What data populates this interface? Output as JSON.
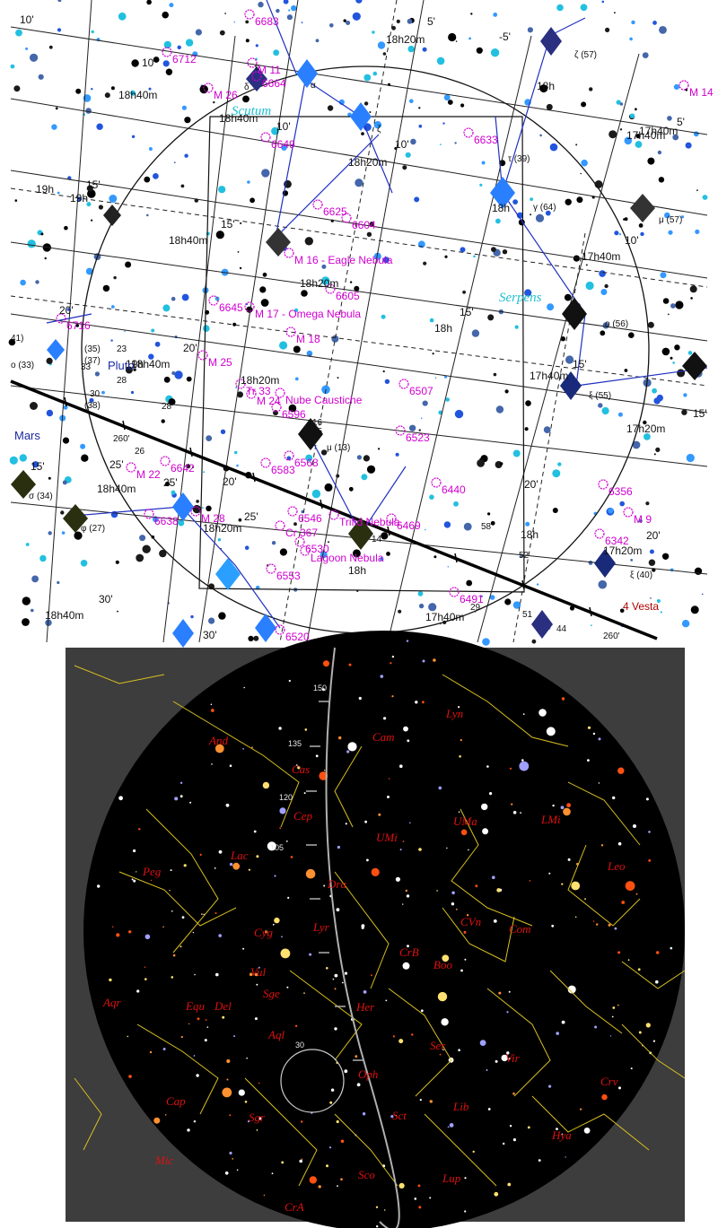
{
  "top_chart": {
    "objects": [
      {
        "label": "6683"
      },
      {
        "label": "6712"
      },
      {
        "label": "M 26"
      },
      {
        "label": "6664"
      },
      {
        "label": "M 11"
      },
      {
        "label": "6633"
      },
      {
        "label": "6649"
      },
      {
        "label": "6625"
      },
      {
        "label": "6604"
      },
      {
        "label": "M 16 - Eagle Nebula"
      },
      {
        "label": "6605"
      },
      {
        "label": "6645"
      },
      {
        "label": "M 17 - Omega Nebula"
      },
      {
        "label": "M 18"
      },
      {
        "label": "6716"
      },
      {
        "label": "M 25"
      },
      {
        "label": "6507"
      },
      {
        "label": "Tr 33"
      },
      {
        "label": "M 24"
      },
      {
        "label": "Nube Caustiche"
      },
      {
        "label": "6596"
      },
      {
        "label": "6523"
      },
      {
        "label": "6568"
      },
      {
        "label": "6583"
      },
      {
        "label": "6440"
      },
      {
        "label": "M 22"
      },
      {
        "label": "6642"
      },
      {
        "label": "6638"
      },
      {
        "label": "M 28"
      },
      {
        "label": "6546"
      },
      {
        "label": "Trifid Nebula"
      },
      {
        "label": "6469"
      },
      {
        "label": "Cr 367"
      },
      {
        "label": "6530"
      },
      {
        "label": "Lagoon Nebula"
      },
      {
        "label": "6553"
      },
      {
        "label": "6491"
      },
      {
        "label": "6356"
      },
      {
        "label": "M 9"
      },
      {
        "label": "6342"
      },
      {
        "label": "M 14"
      },
      {
        "label": "6520"
      }
    ],
    "coords": [
      {
        "label": "18h20m"
      },
      {
        "label": "18h40m"
      },
      {
        "label": "19h"
      },
      {
        "label": "18h20m"
      },
      {
        "label": "17h40m"
      },
      {
        "label": "18h"
      },
      {
        "label": "18h40m"
      },
      {
        "label": "17h40m"
      },
      {
        "label": "18h20m"
      },
      {
        "label": "18h"
      },
      {
        "label": "17h40m"
      },
      {
        "label": "18h20m"
      },
      {
        "label": "17h20m"
      },
      {
        "label": "18h40m"
      },
      {
        "label": "18h20m"
      },
      {
        "label": "18h"
      },
      {
        "label": "17h20m"
      },
      {
        "label": "18h40m"
      },
      {
        "label": "17h40m"
      },
      {
        "label": "18h"
      },
      {
        "label": "18h40m"
      },
      {
        "label": "19h"
      },
      {
        "label": "18h"
      },
      {
        "label": "17h40m"
      },
      {
        "label": "18h40m"
      },
      {
        "label": "19h"
      }
    ],
    "decl": [
      {
        "label": "10'"
      },
      {
        "label": "10'"
      },
      {
        "label": "5'"
      },
      {
        "label": "5'"
      },
      {
        "label": "10'"
      },
      {
        "label": "10'"
      },
      {
        "label": "15'"
      },
      {
        "label": "15'"
      },
      {
        "label": "10'"
      },
      {
        "label": "15'"
      },
      {
        "label": "20'"
      },
      {
        "label": "20'"
      },
      {
        "label": "15'"
      },
      {
        "label": "15'"
      },
      {
        "label": "20'"
      },
      {
        "label": "15'"
      },
      {
        "label": "25'"
      },
      {
        "label": "20'"
      },
      {
        "label": "25'"
      },
      {
        "label": "20'"
      },
      {
        "label": "30'"
      },
      {
        "label": "25'"
      },
      {
        "label": "30'"
      },
      {
        "label": "-5'"
      }
    ],
    "stars": [
      {
        "label": "ζ (57)"
      },
      {
        "label": "μ (57)"
      },
      {
        "label": "γ (64)"
      },
      {
        "label": "o (56)"
      },
      {
        "label": "ξ (55)"
      },
      {
        "label": "μ (13)"
      },
      {
        "label": "σ (34)"
      },
      {
        "label": "φ (27)"
      },
      {
        "label": "ξ (40)"
      },
      {
        "label": "ε"
      },
      {
        "label": "α"
      },
      {
        "label": "ζ"
      },
      {
        "label": "τ (39)"
      },
      {
        "label": "o (33)"
      },
      {
        "label": "(37)"
      },
      {
        "label": "(38)"
      },
      {
        "label": "41)"
      },
      {
        "label": "(35)"
      },
      {
        "label": "δ"
      }
    ],
    "ticks": [
      {
        "label": "260'"
      },
      {
        "label": "260'"
      },
      {
        "label": "23"
      },
      {
        "label": "28"
      },
      {
        "label": "30"
      },
      {
        "label": "33"
      },
      {
        "label": "28"
      },
      {
        "label": "16"
      },
      {
        "label": "15"
      },
      {
        "label": "14"
      },
      {
        "label": "58"
      },
      {
        "label": "52"
      },
      {
        "label": "51"
      },
      {
        "label": "44"
      },
      {
        "label": "29"
      },
      {
        "label": "26"
      }
    ],
    "constellations": [
      {
        "label": "Serpens"
      },
      {
        "label": "Scutum"
      }
    ],
    "planets": [
      {
        "label": "Pluto"
      },
      {
        "label": "Mars"
      }
    ],
    "asteroid": "4 Vesta"
  },
  "bottom_chart": {
    "constellations": [
      {
        "label": "Lyn"
      },
      {
        "label": "And"
      },
      {
        "label": "Cam"
      },
      {
        "label": "Cas"
      },
      {
        "label": "Cep"
      },
      {
        "label": "UMa"
      },
      {
        "label": "LMi"
      },
      {
        "label": "UMi"
      },
      {
        "label": "Lac"
      },
      {
        "label": "Peg"
      },
      {
        "label": "Dra"
      },
      {
        "label": "Leo"
      },
      {
        "label": "CVn"
      },
      {
        "label": "Cyg"
      },
      {
        "label": "Com"
      },
      {
        "label": "Lyr"
      },
      {
        "label": "Vul"
      },
      {
        "label": "CrB"
      },
      {
        "label": "Boo"
      },
      {
        "label": "Sge"
      },
      {
        "label": "Her"
      },
      {
        "label": "Equ"
      },
      {
        "label": "Del"
      },
      {
        "label": "Aqr"
      },
      {
        "label": "Aql"
      },
      {
        "label": "Ser"
      },
      {
        "label": "Vir"
      },
      {
        "label": "Oph"
      },
      {
        "label": "Cap"
      },
      {
        "label": "Crv"
      },
      {
        "label": "Lib"
      },
      {
        "label": "Sct"
      },
      {
        "label": "Sgr"
      },
      {
        "label": "Hya"
      },
      {
        "label": "Mic"
      },
      {
        "label": "Sco"
      },
      {
        "label": "Lup"
      },
      {
        "label": "CrA"
      }
    ],
    "ecliptic_marks": [
      {
        "label": "150"
      },
      {
        "label": "135"
      },
      {
        "label": "120"
      },
      {
        "label": "105"
      },
      {
        "label": "30"
      }
    ]
  }
}
